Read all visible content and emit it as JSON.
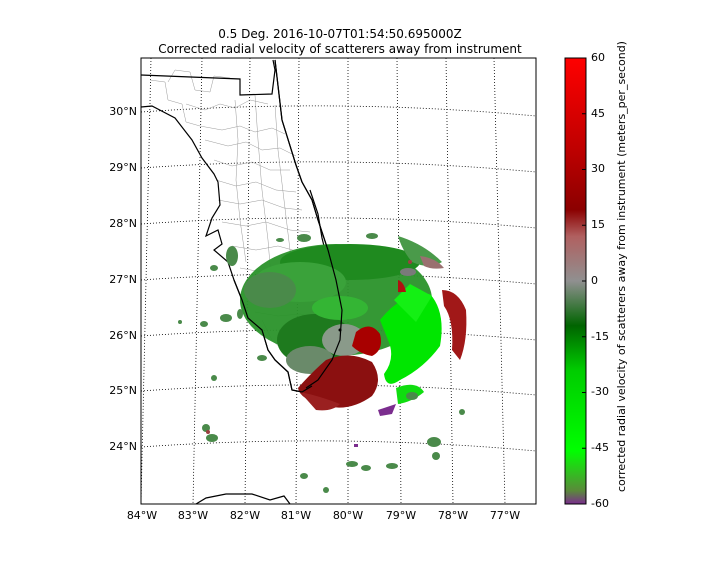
{
  "title_line1": "0.5 Deg. 2016-10-07T01:54:50.695000Z",
  "title_line2": "Corrected radial velocity of scatterers away from instrument",
  "lat_labels": [
    "30°N",
    "29°N",
    "28°N",
    "27°N",
    "26°N",
    "25°N",
    "24°N"
  ],
  "lon_labels": [
    "84°W",
    "83°W",
    "82°W",
    "81°W",
    "80°W",
    "79°W",
    "78°W",
    "77°W"
  ],
  "colorbar": {
    "label": "corrected radial velocity of scatterers away from instrument (meters_per_second)",
    "ticks": [
      "60",
      "45",
      "30",
      "15",
      "0",
      "-15",
      "-30",
      "-45",
      "-60"
    ],
    "range": [
      -60,
      60
    ],
    "colors": [
      "#7a2c8e",
      "#00ff00",
      "#006400",
      "#9a9a9a",
      "#8b0000",
      "#ff0000"
    ]
  }
}
